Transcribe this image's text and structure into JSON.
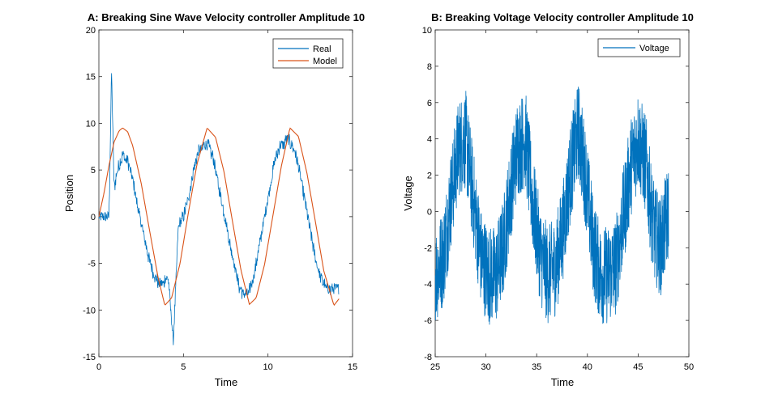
{
  "chart_data": [
    {
      "type": "line",
      "title": "A: Breaking Sine Wave Velocity controller Amplitude 10",
      "xlabel": "Time",
      "ylabel": "Position",
      "xlim": [
        0,
        15
      ],
      "ylim": [
        -15,
        20
      ],
      "xticks": [
        0,
        5,
        10,
        15
      ],
      "yticks": [
        -15,
        -10,
        -5,
        0,
        5,
        10,
        15,
        20
      ],
      "grid": false,
      "legend_position": "top-right",
      "series": [
        {
          "name": "Real",
          "color": "#0072BD",
          "style": "noisy-quantized",
          "x": [
            0.0,
            0.3,
            0.6,
            0.75,
            0.9,
            1.1,
            1.4,
            1.7,
            2.0,
            2.3,
            2.6,
            2.9,
            3.2,
            3.5,
            3.8,
            4.1,
            4.4,
            4.7,
            5.0,
            5.3,
            5.6,
            5.9,
            6.2,
            6.5,
            6.8,
            7.1,
            7.4,
            7.7,
            8.0,
            8.3,
            8.6,
            8.9,
            9.2,
            9.5,
            9.8,
            10.1,
            10.4,
            10.7,
            11.0,
            11.3,
            11.6,
            11.9,
            12.2,
            12.5,
            12.8,
            13.1,
            13.4,
            13.7,
            14.0,
            14.2
          ],
          "y": [
            0,
            0,
            0,
            15.7,
            3,
            5,
            6.5,
            6,
            4,
            1,
            -1.5,
            -4,
            -6,
            -7,
            -7,
            -6.5,
            -13.5,
            -1,
            0,
            2,
            5,
            7,
            7.5,
            7.5,
            6,
            3,
            0.5,
            -2.5,
            -5,
            -7.5,
            -8.5,
            -8,
            -6,
            -3,
            0,
            3,
            6,
            7.5,
            8,
            8,
            7,
            4.5,
            1.5,
            -1.5,
            -4.5,
            -6.5,
            -7.5,
            -8,
            -7.5,
            -7.5
          ]
        },
        {
          "name": "Model",
          "color": "#D95319",
          "style": "smooth",
          "x": [
            0.0,
            0.3,
            0.6,
            0.9,
            1.2,
            1.4,
            1.7,
            2.0,
            2.5,
            3.0,
            3.5,
            3.9,
            4.3,
            4.8,
            5.3,
            5.8,
            6.4,
            6.9,
            7.4,
            7.9,
            8.4,
            8.9,
            9.3,
            9.8,
            10.3,
            10.8,
            11.3,
            11.8,
            12.3,
            12.8,
            13.3,
            13.9,
            14.2
          ],
          "y": [
            0,
            2.5,
            5.5,
            8,
            9.2,
            9.5,
            9.1,
            7.6,
            3.6,
            -1.5,
            -6.5,
            -9.5,
            -8.7,
            -5,
            0.5,
            5.6,
            9.5,
            8.5,
            4.8,
            -0.5,
            -5.7,
            -9.4,
            -8.7,
            -5.1,
            0.2,
            5.5,
            9.5,
            8.6,
            4.7,
            -0.5,
            -5.8,
            -9.5,
            -8.8
          ]
        }
      ]
    },
    {
      "type": "line",
      "title": "B: Breaking Voltage Velocity controller Amplitude 10",
      "xlabel": "Time",
      "ylabel": "Voltage",
      "xlim": [
        25,
        50
      ],
      "ylim": [
        -8,
        10
      ],
      "xticks": [
        25,
        30,
        35,
        40,
        45,
        50
      ],
      "yticks": [
        -8,
        -6,
        -4,
        -2,
        0,
        2,
        4,
        6,
        8,
        10
      ],
      "grid": false,
      "legend_position": "top-right",
      "series": [
        {
          "name": "Voltage",
          "color": "#0072BD",
          "style": "noisy",
          "x": [
            25.0,
            25.8,
            26.5,
            27.3,
            28.0,
            28.7,
            29.5,
            30.2,
            31.0,
            31.7,
            32.4,
            33.1,
            33.9,
            34.6,
            35.4,
            36.1,
            36.9,
            37.6,
            38.3,
            39.1,
            39.8,
            40.6,
            41.3,
            42.0,
            42.8,
            43.5,
            44.3,
            45.0,
            45.8,
            46.5,
            47.2,
            48.0
          ],
          "y": [
            -3.5,
            -2.5,
            0.5,
            3.5,
            4,
            1,
            -2.5,
            -3.5,
            -3.5,
            -2,
            1,
            3.5,
            4,
            0.5,
            -2.5,
            -3.5,
            -3,
            -1,
            2,
            4.5,
            2,
            -2,
            -3.5,
            -3.5,
            -3,
            -0.5,
            2.5,
            4,
            2.5,
            -1,
            -2,
            0
          ]
        }
      ]
    }
  ]
}
